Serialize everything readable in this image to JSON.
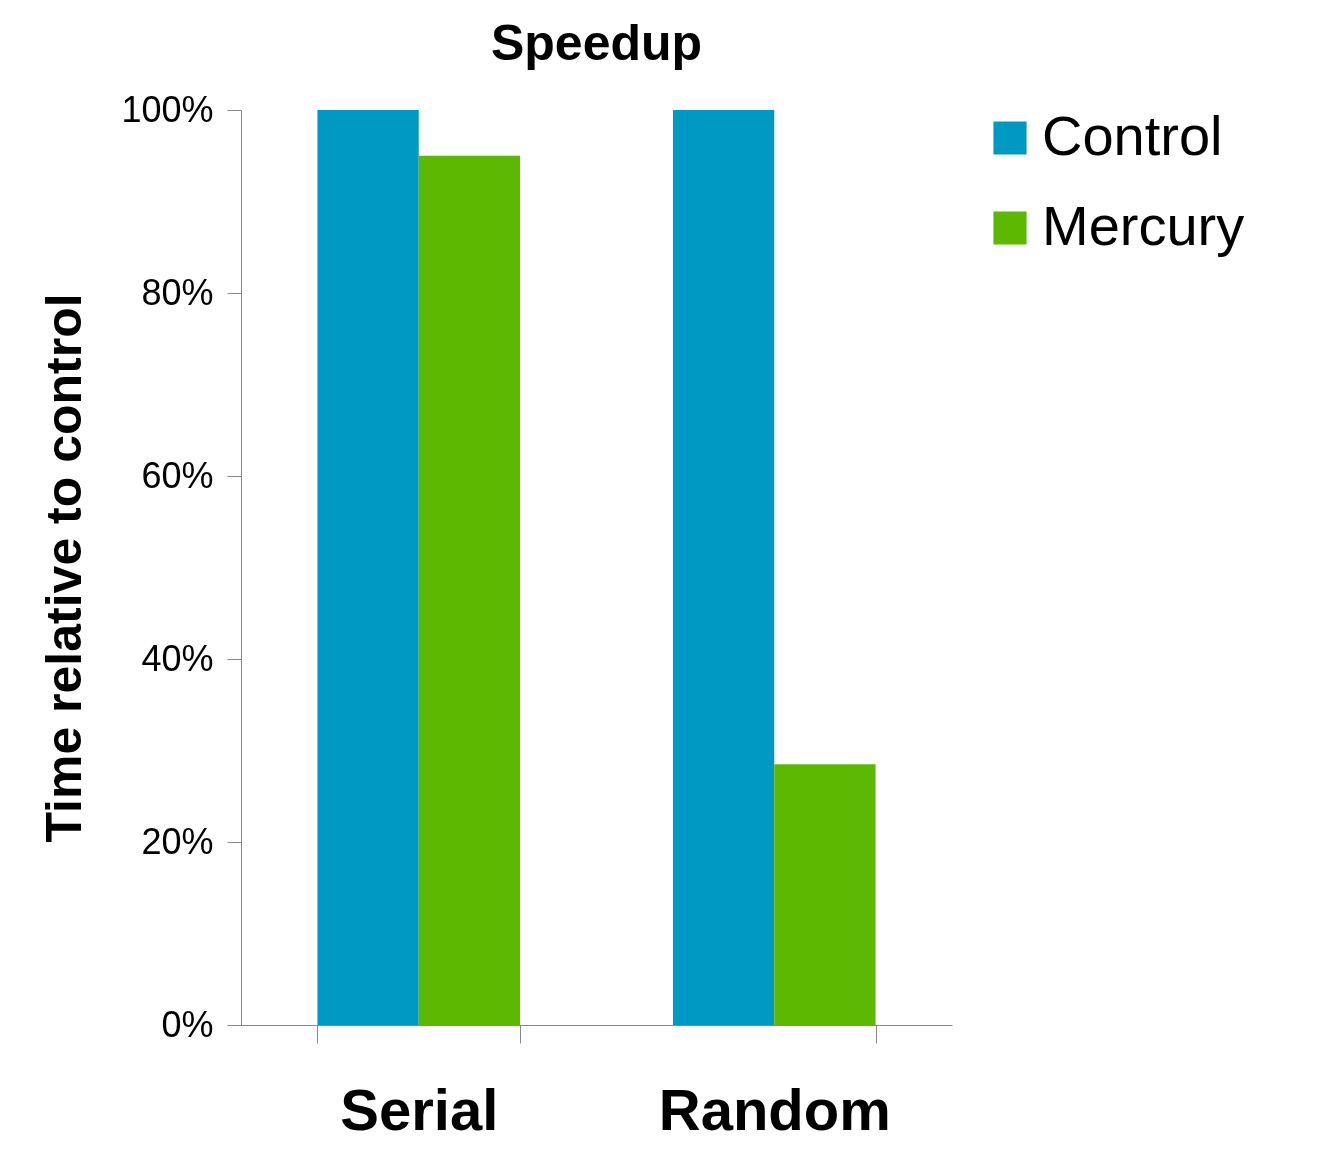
{
  "chart_data": {
    "type": "bar",
    "title": "Speedup",
    "ylabel": "Time relative to control",
    "categories": [
      "Serial",
      "Random"
    ],
    "series": [
      {
        "name": "Control",
        "color": "#0099c4",
        "values": [
          100,
          100
        ]
      },
      {
        "name": "Mercury",
        "color": "#5cb800",
        "values": [
          95,
          28.5
        ]
      }
    ],
    "ylim": [
      0,
      100
    ],
    "yticks": [
      {
        "value": 0,
        "label": "0%"
      },
      {
        "value": 20,
        "label": "20%"
      },
      {
        "value": 40,
        "label": "40%"
      },
      {
        "value": 60,
        "label": "60%"
      },
      {
        "value": 80,
        "label": "80%"
      },
      {
        "value": 100,
        "label": "100%"
      }
    ],
    "grid": false,
    "legend": "right"
  }
}
